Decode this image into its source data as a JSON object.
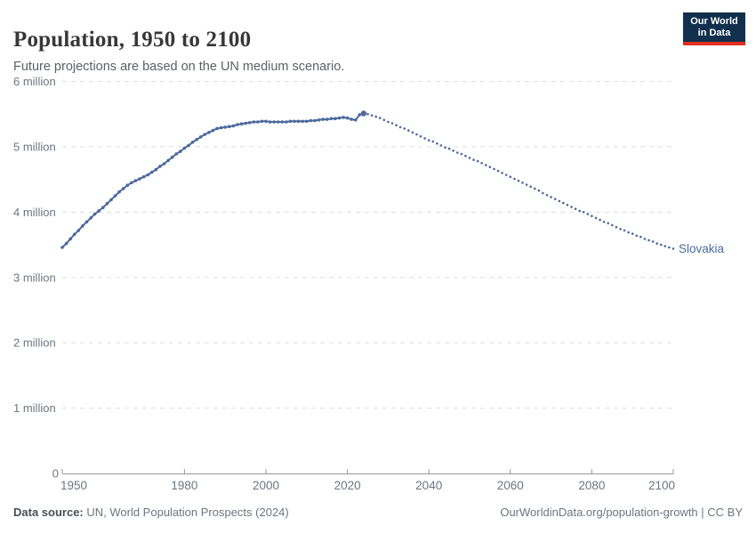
{
  "header": {
    "title": "Population, 1950 to 2100",
    "subtitle": "Future projections are based on the UN medium scenario."
  },
  "logo": {
    "line1": "Our World",
    "line2": "in Data"
  },
  "footer": {
    "source_label": "Data source:",
    "source_text": " UN, World Population Prospects (2024)",
    "credit": "OurWorldinData.org/population-growth | CC BY"
  },
  "chart_data": {
    "type": "line",
    "title": "Population, 1950 to 2100",
    "subtitle": "Future projections are based on the UN medium scenario.",
    "entity_label": "Slovakia",
    "unit": "million people",
    "xlabel": "",
    "ylabel": "",
    "xlim": [
      1950,
      2100
    ],
    "ylim_millions": [
      0,
      6
    ],
    "grid": true,
    "legend_position": "end-of-line",
    "ytick_labels": [
      "0",
      "1 million",
      "2 million",
      "3 million",
      "4 million",
      "5 million",
      "6 million"
    ],
    "xtick_labels": [
      "1950",
      "1980",
      "2000",
      "2020",
      "2040",
      "2060",
      "2080",
      "2100"
    ],
    "xticks": [
      1950,
      1980,
      2000,
      2020,
      2040,
      2060,
      2080,
      2100
    ],
    "colors": {
      "line": "#4c6a9c",
      "entity_label": "#4c6a9c",
      "grid": "#dedede",
      "axis": "#9a9a9a",
      "tick_text": "#6e7581"
    },
    "series": [
      {
        "name": "Slovakia (historical estimates)",
        "style": "solid-with-markers",
        "color": "#4c6a9c",
        "points": [
          [
            1950,
            3.46
          ],
          [
            1951,
            3.52
          ],
          [
            1952,
            3.59
          ],
          [
            1953,
            3.66
          ],
          [
            1954,
            3.72
          ],
          [
            1955,
            3.79
          ],
          [
            1956,
            3.85
          ],
          [
            1957,
            3.91
          ],
          [
            1958,
            3.97
          ],
          [
            1959,
            4.02
          ],
          [
            1960,
            4.07
          ],
          [
            1961,
            4.13
          ],
          [
            1962,
            4.19
          ],
          [
            1963,
            4.25
          ],
          [
            1964,
            4.31
          ],
          [
            1965,
            4.36
          ],
          [
            1966,
            4.41
          ],
          [
            1967,
            4.45
          ],
          [
            1968,
            4.48
          ],
          [
            1969,
            4.51
          ],
          [
            1970,
            4.54
          ],
          [
            1971,
            4.57
          ],
          [
            1972,
            4.61
          ],
          [
            1973,
            4.65
          ],
          [
            1974,
            4.7
          ],
          [
            1975,
            4.74
          ],
          [
            1976,
            4.79
          ],
          [
            1977,
            4.84
          ],
          [
            1978,
            4.89
          ],
          [
            1979,
            4.93
          ],
          [
            1980,
            4.98
          ],
          [
            1981,
            5.02
          ],
          [
            1982,
            5.07
          ],
          [
            1983,
            5.11
          ],
          [
            1984,
            5.15
          ],
          [
            1985,
            5.19
          ],
          [
            1986,
            5.22
          ],
          [
            1987,
            5.25
          ],
          [
            1988,
            5.28
          ],
          [
            1989,
            5.29
          ],
          [
            1990,
            5.3
          ],
          [
            1991,
            5.31
          ],
          [
            1992,
            5.32
          ],
          [
            1993,
            5.34
          ],
          [
            1994,
            5.35
          ],
          [
            1995,
            5.36
          ],
          [
            1996,
            5.37
          ],
          [
            1997,
            5.38
          ],
          [
            1998,
            5.38
          ],
          [
            1999,
            5.39
          ],
          [
            2000,
            5.39
          ],
          [
            2001,
            5.38
          ],
          [
            2002,
            5.38
          ],
          [
            2003,
            5.38
          ],
          [
            2004,
            5.38
          ],
          [
            2005,
            5.38
          ],
          [
            2006,
            5.39
          ],
          [
            2007,
            5.39
          ],
          [
            2008,
            5.39
          ],
          [
            2009,
            5.39
          ],
          [
            2010,
            5.39
          ],
          [
            2011,
            5.4
          ],
          [
            2012,
            5.4
          ],
          [
            2013,
            5.41
          ],
          [
            2014,
            5.42
          ],
          [
            2015,
            5.42
          ],
          [
            2016,
            5.43
          ],
          [
            2017,
            5.43
          ],
          [
            2018,
            5.44
          ],
          [
            2019,
            5.45
          ],
          [
            2020,
            5.44
          ],
          [
            2021,
            5.42
          ],
          [
            2022,
            5.41
          ],
          [
            2023,
            5.49
          ],
          [
            2024,
            5.51
          ]
        ]
      },
      {
        "name": "Slovakia (UN medium scenario projection)",
        "style": "dotted",
        "color": "#4c6a9c",
        "points": [
          [
            2024,
            5.51
          ],
          [
            2025,
            5.5
          ],
          [
            2026,
            5.48
          ],
          [
            2027,
            5.46
          ],
          [
            2028,
            5.44
          ],
          [
            2029,
            5.41
          ],
          [
            2030,
            5.38
          ],
          [
            2031,
            5.36
          ],
          [
            2032,
            5.33
          ],
          [
            2033,
            5.3
          ],
          [
            2034,
            5.28
          ],
          [
            2035,
            5.25
          ],
          [
            2036,
            5.22
          ],
          [
            2037,
            5.19
          ],
          [
            2038,
            5.16
          ],
          [
            2039,
            5.13
          ],
          [
            2040,
            5.1
          ],
          [
            2041,
            5.08
          ],
          [
            2042,
            5.05
          ],
          [
            2043,
            5.02
          ],
          [
            2044,
            4.99
          ],
          [
            2045,
            4.97
          ],
          [
            2046,
            4.94
          ],
          [
            2047,
            4.91
          ],
          [
            2048,
            4.89
          ],
          [
            2049,
            4.86
          ],
          [
            2050,
            4.83
          ],
          [
            2051,
            4.8
          ],
          [
            2052,
            4.78
          ],
          [
            2053,
            4.75
          ],
          [
            2054,
            4.72
          ],
          [
            2055,
            4.69
          ],
          [
            2056,
            4.66
          ],
          [
            2057,
            4.63
          ],
          [
            2058,
            4.6
          ],
          [
            2059,
            4.57
          ],
          [
            2060,
            4.54
          ],
          [
            2061,
            4.51
          ],
          [
            2062,
            4.48
          ],
          [
            2063,
            4.45
          ],
          [
            2064,
            4.42
          ],
          [
            2065,
            4.39
          ],
          [
            2066,
            4.36
          ],
          [
            2067,
            4.33
          ],
          [
            2068,
            4.29
          ],
          [
            2069,
            4.26
          ],
          [
            2070,
            4.23
          ],
          [
            2071,
            4.2
          ],
          [
            2072,
            4.17
          ],
          [
            2073,
            4.14
          ],
          [
            2074,
            4.11
          ],
          [
            2075,
            4.08
          ],
          [
            2076,
            4.05
          ],
          [
            2077,
            4.02
          ],
          [
            2078,
            4.0
          ],
          [
            2079,
            3.97
          ],
          [
            2080,
            3.94
          ],
          [
            2081,
            3.91
          ],
          [
            2082,
            3.88
          ],
          [
            2083,
            3.85
          ],
          [
            2084,
            3.83
          ],
          [
            2085,
            3.8
          ],
          [
            2086,
            3.77
          ],
          [
            2087,
            3.74
          ],
          [
            2088,
            3.72
          ],
          [
            2089,
            3.69
          ],
          [
            2090,
            3.67
          ],
          [
            2091,
            3.64
          ],
          [
            2092,
            3.62
          ],
          [
            2093,
            3.59
          ],
          [
            2094,
            3.57
          ],
          [
            2095,
            3.55
          ],
          [
            2096,
            3.52
          ],
          [
            2097,
            3.5
          ],
          [
            2098,
            3.48
          ],
          [
            2099,
            3.46
          ],
          [
            2100,
            3.44
          ]
        ]
      }
    ]
  }
}
